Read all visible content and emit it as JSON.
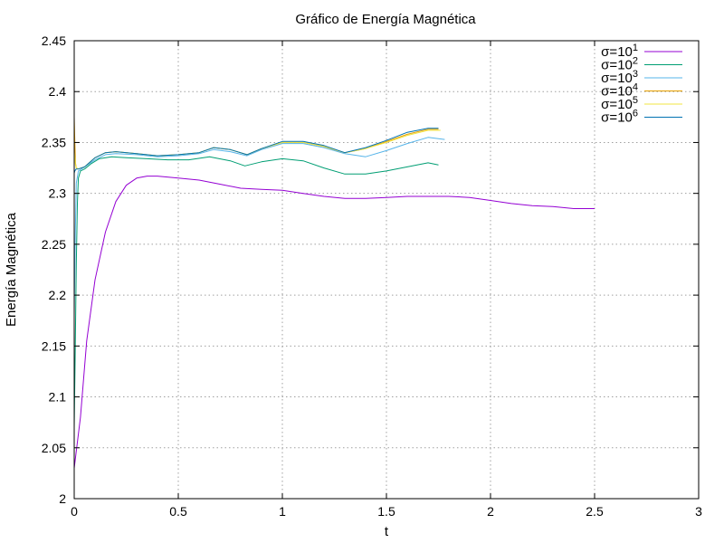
{
  "chart_data": {
    "type": "line",
    "title": "Gráfico de Energía Magnética",
    "xlabel": "t",
    "ylabel": "Energía Magnética",
    "xlim": [
      0,
      3
    ],
    "ylim": [
      2,
      2.45
    ],
    "xticks": [
      0,
      0.5,
      1,
      1.5,
      2,
      2.5,
      3
    ],
    "xtick_labels": [
      "0",
      "0.5",
      "1",
      "1.5",
      "2",
      "2.5",
      "3"
    ],
    "yticks": [
      2,
      2.05,
      2.1,
      2.15,
      2.2,
      2.25,
      2.3,
      2.35,
      2.4,
      2.45
    ],
    "ytick_labels": [
      "2",
      "2.05",
      "2.1",
      "2.15",
      "2.2",
      "2.25",
      "2.3",
      "2.35",
      "2.4",
      "2.45"
    ],
    "grid": true,
    "legend_position": "top-right",
    "series": [
      {
        "name": "σ=10",
        "sup": "1",
        "color": "#9400d3",
        "x": [
          0,
          0.03,
          0.06,
          0.1,
          0.15,
          0.2,
          0.25,
          0.3,
          0.35,
          0.4,
          0.5,
          0.6,
          0.7,
          0.8,
          0.9,
          1.0,
          1.1,
          1.2,
          1.3,
          1.4,
          1.5,
          1.6,
          1.7,
          1.8,
          1.9,
          2.0,
          2.1,
          2.2,
          2.3,
          2.4,
          2.5
        ],
        "y": [
          2.03,
          2.08,
          2.155,
          2.215,
          2.262,
          2.292,
          2.308,
          2.315,
          2.317,
          2.317,
          2.315,
          2.313,
          2.309,
          2.305,
          2.304,
          2.303,
          2.3,
          2.297,
          2.295,
          2.295,
          2.296,
          2.297,
          2.297,
          2.297,
          2.296,
          2.293,
          2.29,
          2.288,
          2.287,
          2.285,
          2.285
        ]
      },
      {
        "name": "σ=10",
        "sup": "2",
        "color": "#009e73",
        "x": [
          0,
          0.005,
          0.01,
          0.015,
          0.02,
          0.03,
          0.05,
          0.08,
          0.12,
          0.18,
          0.25,
          0.35,
          0.45,
          0.55,
          0.65,
          0.75,
          0.82,
          0.9,
          1.0,
          1.1,
          1.2,
          1.3,
          1.4,
          1.5,
          1.6,
          1.7,
          1.75
        ],
        "y": [
          2.07,
          2.15,
          2.23,
          2.29,
          2.315,
          2.322,
          2.324,
          2.329,
          2.334,
          2.336,
          2.335,
          2.334,
          2.333,
          2.333,
          2.336,
          2.332,
          2.327,
          2.331,
          2.334,
          2.332,
          2.325,
          2.319,
          2.319,
          2.322,
          2.326,
          2.33,
          2.328
        ]
      },
      {
        "name": "σ=10",
        "sup": "3",
        "color": "#56b4e9",
        "x": [
          0,
          0.005,
          0.01,
          0.02,
          0.05,
          0.1,
          0.15,
          0.2,
          0.3,
          0.4,
          0.5,
          0.6,
          0.67,
          0.75,
          0.83,
          0.9,
          1.0,
          1.1,
          1.2,
          1.3,
          1.4,
          1.5,
          1.6,
          1.7,
          1.78
        ],
        "y": [
          2.18,
          2.26,
          2.31,
          2.322,
          2.326,
          2.333,
          2.338,
          2.339,
          2.338,
          2.336,
          2.337,
          2.339,
          2.343,
          2.341,
          2.337,
          2.343,
          2.349,
          2.349,
          2.345,
          2.339,
          2.336,
          2.342,
          2.349,
          2.355,
          2.353
        ]
      },
      {
        "name": "σ=10",
        "sup": "4",
        "color": "#e69f00",
        "x": [
          0,
          0.003,
          0.006,
          0.01,
          0.02,
          0.05,
          0.1,
          0.15,
          0.2,
          0.3,
          0.4,
          0.5,
          0.6,
          0.67,
          0.75,
          0.83,
          0.9,
          1.0,
          1.1,
          1.2,
          1.3,
          1.4,
          1.5,
          1.6,
          1.7,
          1.75
        ],
        "y": [
          2.375,
          2.35,
          2.33,
          2.325,
          2.324,
          2.326,
          2.335,
          2.34,
          2.341,
          2.339,
          2.337,
          2.338,
          2.34,
          2.345,
          2.343,
          2.338,
          2.344,
          2.35,
          2.35,
          2.346,
          2.34,
          2.344,
          2.351,
          2.358,
          2.363,
          2.363
        ]
      },
      {
        "name": "σ=10",
        "sup": "5",
        "color": "#f0e442",
        "x": [
          0,
          0.003,
          0.006,
          0.01,
          0.02,
          0.05,
          0.1,
          0.15,
          0.2,
          0.3,
          0.4,
          0.5,
          0.6,
          0.67,
          0.75,
          0.83,
          0.9,
          1.0,
          1.1,
          1.2,
          1.3,
          1.4,
          1.5,
          1.6,
          1.7,
          1.76
        ],
        "y": [
          2.34,
          2.335,
          2.328,
          2.325,
          2.324,
          2.326,
          2.335,
          2.34,
          2.341,
          2.339,
          2.337,
          2.338,
          2.34,
          2.345,
          2.343,
          2.338,
          2.344,
          2.35,
          2.35,
          2.346,
          2.34,
          2.344,
          2.35,
          2.357,
          2.362,
          2.362
        ]
      },
      {
        "name": "σ=10",
        "sup": "6",
        "color": "#0072b2",
        "x": [
          0,
          0.003,
          0.006,
          0.01,
          0.02,
          0.05,
          0.1,
          0.15,
          0.2,
          0.3,
          0.4,
          0.5,
          0.6,
          0.67,
          0.75,
          0.83,
          0.9,
          1.0,
          1.1,
          1.2,
          1.3,
          1.4,
          1.5,
          1.6,
          1.7,
          1.75
        ],
        "y": [
          2.32,
          2.322,
          2.323,
          2.324,
          2.324,
          2.326,
          2.335,
          2.34,
          2.341,
          2.339,
          2.337,
          2.338,
          2.34,
          2.345,
          2.343,
          2.338,
          2.344,
          2.351,
          2.351,
          2.347,
          2.34,
          2.345,
          2.352,
          2.36,
          2.364,
          2.364
        ]
      }
    ]
  }
}
